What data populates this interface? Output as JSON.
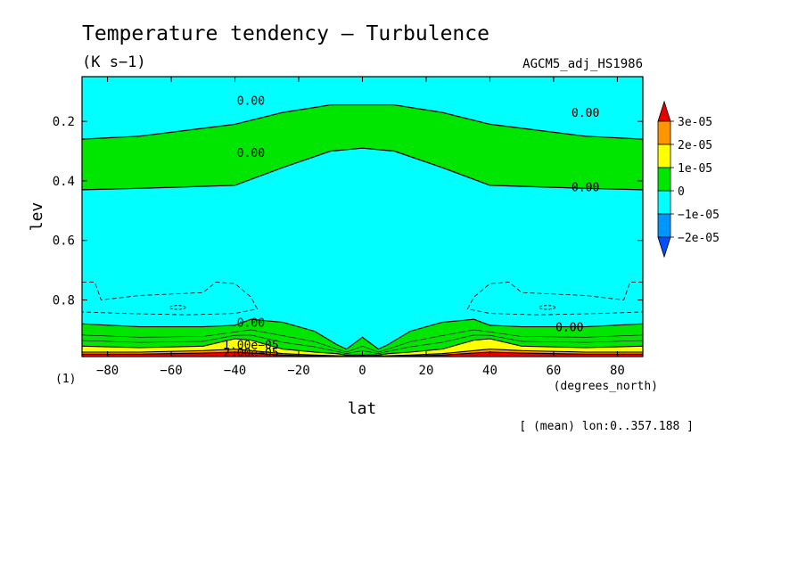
{
  "chart_data": {
    "type": "heatmap",
    "title": "Temperature tendency — Turbulence",
    "units": "(K s−1)",
    "subtitle": "AGCM5_adj_HS1986",
    "xlabel": "lat",
    "xunits": "(degrees_north)",
    "ylabel": "lev",
    "yunits": "(1)",
    "footnote": "[ (mean) lon:0..357.188 ]",
    "xlim": [
      -88,
      88
    ],
    "ylim": [
      0.05,
      0.99
    ],
    "y_reversed": true,
    "grid": false,
    "x_ticks": [
      -80,
      -60,
      -40,
      -20,
      0,
      20,
      40,
      60,
      80
    ],
    "y_ticks": [
      0.2,
      0.4,
      0.6,
      0.8
    ],
    "x_tick_labels": [
      "−80",
      "−60",
      "−40",
      "−20",
      "0",
      "20",
      "40",
      "60",
      "80"
    ],
    "y_tick_labels": [
      "0.2",
      "0.4",
      "0.6",
      "0.8"
    ],
    "background_level_color": "#00ffff",
    "colorbar": {
      "levels": [
        {
          "value": "-2e-05",
          "color": "#0096ff"
        },
        {
          "value": "-1e-05",
          "color": "#00ffff"
        },
        {
          "value": "0",
          "color": "#00e600"
        },
        {
          "value": "1e-05",
          "color": "#ffff00"
        },
        {
          "value": "2e-05",
          "color": "#ff9600"
        },
        {
          "value": "3e-05",
          "color": "#e60000"
        }
      ],
      "labels": [
        "3e-05",
        "2e-05",
        "1e-05",
        "0",
        "−1e-05",
        "−2e-05"
      ],
      "under_color": "#0050ff",
      "over_color": "#e60000"
    },
    "upper_positive_band": {
      "value_range": "0 to 1e-05",
      "color": "#00e600",
      "lat": [
        -88,
        -70,
        -55,
        -40,
        -25,
        -10,
        0,
        10,
        25,
        40,
        55,
        70,
        88
      ],
      "top_lev": [
        0.26,
        0.25,
        0.23,
        0.21,
        0.17,
        0.145,
        0.145,
        0.145,
        0.17,
        0.21,
        0.23,
        0.25,
        0.26
      ],
      "bottom_lev": [
        0.43,
        0.425,
        0.42,
        0.415,
        0.355,
        0.3,
        0.29,
        0.3,
        0.355,
        0.415,
        0.42,
        0.425,
        0.43
      ]
    },
    "surface_layer": {
      "lat": [
        -88,
        -70,
        -50,
        -40,
        -35,
        -25,
        -15,
        -8,
        -5,
        0,
        5,
        8,
        15,
        25,
        35,
        40,
        50,
        70,
        88
      ],
      "zero_contour_lev": [
        0.88,
        0.89,
        0.89,
        0.885,
        0.865,
        0.875,
        0.905,
        0.95,
        0.965,
        0.925,
        0.965,
        0.95,
        0.905,
        0.875,
        0.865,
        0.885,
        0.89,
        0.89,
        0.88
      ],
      "lev_1e05": [
        0.955,
        0.96,
        0.955,
        0.93,
        0.935,
        0.965,
        0.975,
        0.98,
        0.985,
        0.985,
        0.985,
        0.98,
        0.975,
        0.965,
        0.935,
        0.93,
        0.955,
        0.96,
        0.955
      ],
      "lev_2e05": [
        0.975,
        0.975,
        0.97,
        0.965,
        0.97,
        0.98,
        0.985,
        0.987,
        0.988,
        0.988,
        0.988,
        0.987,
        0.985,
        0.98,
        0.97,
        0.965,
        0.97,
        0.975,
        0.975
      ],
      "lev_3e05": [
        0.982,
        0.982,
        0.978,
        0.975,
        0.978,
        0.985,
        0.988,
        0.989,
        0.99,
        0.99,
        0.99,
        0.989,
        0.988,
        0.985,
        0.978,
        0.975,
        0.978,
        0.982,
        0.982
      ]
    },
    "negative_dashed_contours": [
      {
        "value": "-1e-05 region",
        "lat": [
          -88,
          -84,
          -82,
          -70,
          -60,
          -50,
          -46,
          -40,
          -35,
          -33,
          -40,
          -55,
          -75,
          -88
        ],
        "lev": [
          0.74,
          0.74,
          0.8,
          0.785,
          0.78,
          0.775,
          0.74,
          0.745,
          0.79,
          0.83,
          0.845,
          0.85,
          0.845,
          0.84
        ]
      },
      {
        "value": "-1e-05 region",
        "lat": [
          88,
          84,
          82,
          70,
          60,
          50,
          46,
          40,
          35,
          33,
          40,
          55,
          75,
          88
        ],
        "lev": [
          0.74,
          0.74,
          0.8,
          0.785,
          0.78,
          0.775,
          0.74,
          0.745,
          0.79,
          0.83,
          0.845,
          0.85,
          0.845,
          0.84
        ]
      }
    ],
    "contour_labels": [
      {
        "text": "0.00",
        "lat": -35,
        "lev": 0.13
      },
      {
        "text": "0.00",
        "lat": -35,
        "lev": 0.305
      },
      {
        "text": "0.00",
        "lat": 70,
        "lev": 0.17
      },
      {
        "text": "0.00",
        "lat": 70,
        "lev": 0.42
      },
      {
        "text": "0.00",
        "lat": -35,
        "lev": 0.875
      },
      {
        "text": "0.00",
        "lat": 65,
        "lev": 0.89
      },
      {
        "text": "1.00e−05",
        "lat": -35,
        "lev": 0.95
      },
      {
        "text": "2.00e−05",
        "lat": -35,
        "lev": 0.975
      }
    ]
  }
}
